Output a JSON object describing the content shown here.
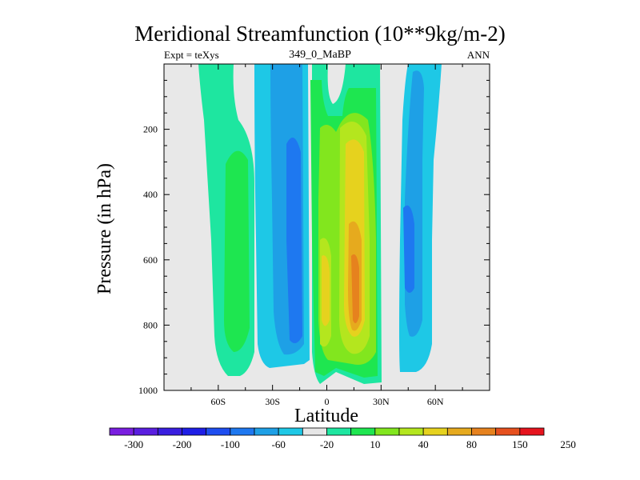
{
  "chart_data": {
    "type": "heatmap",
    "title": "Meridional Streamfunction (10**9kg/m-2)",
    "left_label": "Expt = teXys",
    "center_label": "349_0_MaBP",
    "right_label": "ANN",
    "xlabel": "Latitude",
    "ylabel": "Pressure (in hPa)",
    "xlim": [
      -90,
      90
    ],
    "ylim": [
      1000,
      0
    ],
    "y_reversed": true,
    "x_ticks": [
      {
        "value": -60,
        "label": "60S"
      },
      {
        "value": -30,
        "label": "30S"
      },
      {
        "value": 0,
        "label": "0"
      },
      {
        "value": 30,
        "label": "30N"
      },
      {
        "value": 60,
        "label": "60N"
      }
    ],
    "y_ticks": [
      {
        "value": 200,
        "label": "200"
      },
      {
        "value": 400,
        "label": "400"
      },
      {
        "value": 600,
        "label": "600"
      },
      {
        "value": 800,
        "label": "800"
      },
      {
        "value": 1000,
        "label": "1000"
      }
    ],
    "colorbar": {
      "colors": [
        "#7a1ee0",
        "#5a1ee0",
        "#3a1ee0",
        "#1e1ee6",
        "#1e4ef0",
        "#1e78f0",
        "#1ea0e6",
        "#1ec8e6",
        "#e6e6e6",
        "#1ee6a0",
        "#1ee650",
        "#82e61e",
        "#b4e61e",
        "#e6d21e",
        "#e6aa1e",
        "#e6821e",
        "#e6501e",
        "#e6141e"
      ],
      "labels": [
        "-300",
        "-200",
        "-100",
        "-60",
        "-20",
        "10",
        "40",
        "80",
        "150",
        "250"
      ]
    },
    "background_color": "#e8e8e8",
    "features": [
      {
        "name": "southern-hemisphere-positive-cell",
        "lat": [
          -65,
          -45
        ],
        "p": [
          20,
          965
        ],
        "levels": [
          10,
          40
        ]
      },
      {
        "name": "southern-negative-cell",
        "lat": [
          -30,
          -2
        ],
        "p": [
          20,
          985
        ],
        "levels": [
          -20,
          -60
        ]
      },
      {
        "name": "tropical-positive-cell",
        "lat": [
          -5,
          32
        ],
        "p": [
          20,
          985
        ],
        "levels": [
          10,
          40,
          80,
          150
        ]
      },
      {
        "name": "northern-negative-cell",
        "lat": [
          37,
          55
        ],
        "p": [
          20,
          960
        ],
        "levels": [
          -20,
          -60
        ]
      }
    ]
  }
}
